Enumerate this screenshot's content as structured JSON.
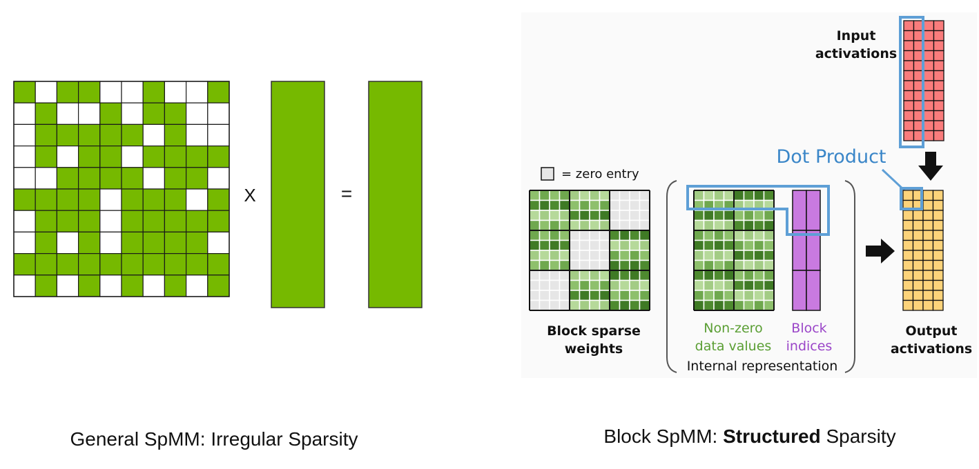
{
  "left_panel": {
    "caption": "General SpMM: Irregular Sparsity",
    "multiply_symbol": "X",
    "equals_symbol": "=",
    "sparse_matrix": [
      "1011001001",
      "0100101100",
      "0111110100",
      "0101101111",
      "0011110110",
      "1111011101",
      "0111011111",
      "0101011110",
      "1111111111",
      "0101010101"
    ],
    "colors": {
      "nonzero": "#76b900",
      "zero": "#ffffff",
      "grid": "#1a1a1a"
    }
  },
  "right_panel": {
    "caption_prefix": "Block SpMM: ",
    "caption_bold": "Structured",
    "caption_suffix": " Sparsity",
    "legend_label": "= zero entry",
    "input_label_line1": "Input",
    "input_label_line2": "activations",
    "dot_product_label": "Dot Product",
    "block_sparse_label_line1": "Block sparse",
    "block_sparse_label_line2": "weights",
    "nonzero_label_line1": "Non-zero",
    "nonzero_label_line2": "data values",
    "block_indices_label_line1": "Block",
    "block_indices_label_line2": "indices",
    "internal_label": "Internal representation",
    "output_label_line1": "Output",
    "output_label_line2": "activations",
    "block_pattern": [
      [
        1,
        1,
        0
      ],
      [
        1,
        0,
        1
      ],
      [
        0,
        1,
        1
      ]
    ],
    "colors": {
      "input": "#fa7c7c",
      "output": "#fcd37a",
      "indices": "#c97ae0",
      "zero_cell": "#e6e6e6",
      "highlight": "#5e9fd6",
      "dot_product_text": "#3a86c8",
      "nonzero_text": "#5a9e33",
      "indices_text": "#9a45c8",
      "green_shades": [
        "#8ec06c",
        "#4e8a2f",
        "#b6d99a",
        "#6fa84e",
        "#3f7a25",
        "#a3cc85"
      ]
    }
  }
}
